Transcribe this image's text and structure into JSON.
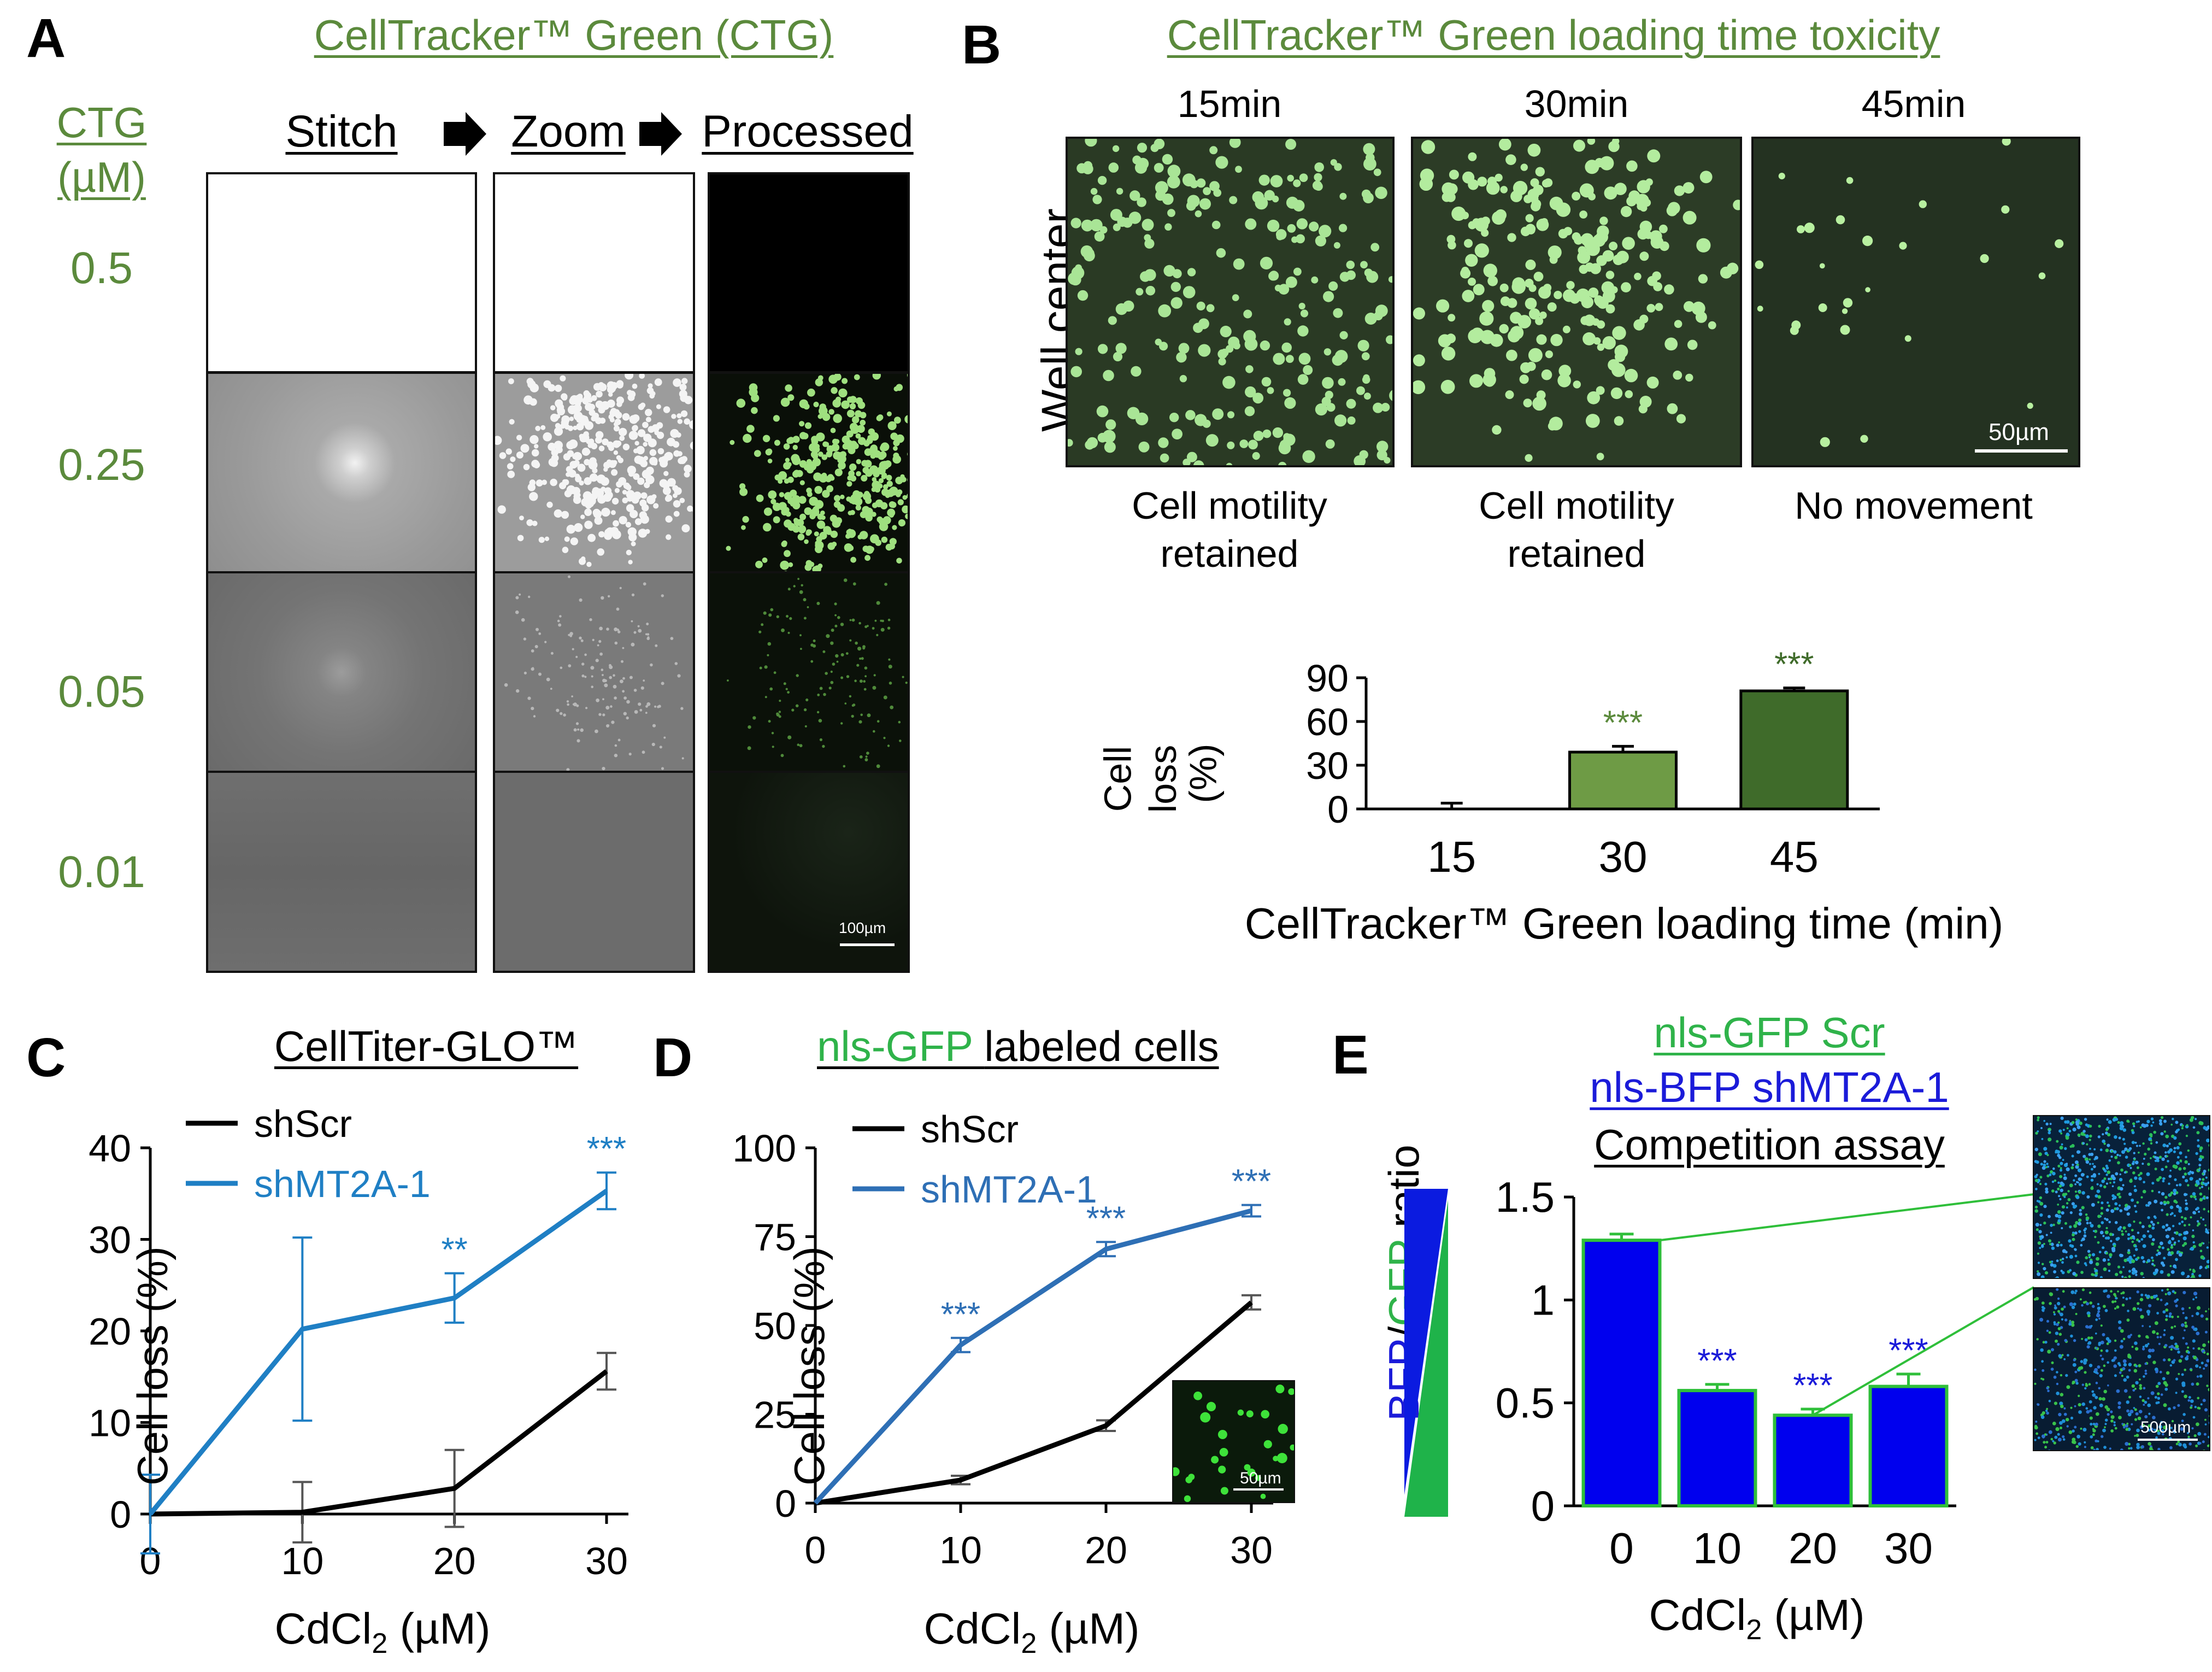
{
  "panel_a": {
    "label": "A",
    "title": "CellTracker™ Green (CTG)",
    "row_header": [
      "CTG",
      "(µM)"
    ],
    "col_stitch": "Stitch",
    "col_zoom": "Zoom",
    "col_processed": "Processed",
    "concentrations": [
      "0.5",
      "0.25",
      "0.05",
      "0.01"
    ],
    "scale_bar": "100µm"
  },
  "panel_b": {
    "label": "B",
    "title": "CellTracker™ Green loading time toxicity",
    "times": [
      "15min",
      "30min",
      "45min"
    ],
    "row_label": "Well center",
    "captions": [
      [
        "Cell motility",
        "retained"
      ],
      [
        "Cell motility",
        "retained"
      ],
      [
        "No movement",
        ""
      ]
    ],
    "scale_bar": "50µm"
  },
  "panel_c": {
    "label": "C",
    "title": "CellTiter-GLO™",
    "legend": [
      "shScr",
      "shMT2A-1"
    ],
    "inset_scale": ""
  },
  "panel_d": {
    "label": "D",
    "title_green": "nls-GFP ",
    "title_black": "labeled cells",
    "legend": [
      "shScr",
      "shMT2A-1"
    ],
    "inset_scale": "50µm"
  },
  "panel_e": {
    "label": "E",
    "title_lines": [
      "nls-GFP Scr",
      "nls-BFP shMT2A-1",
      "Competition assay"
    ],
    "ratio_label_blue": "BFP",
    "ratio_label_slash": "/",
    "ratio_label_green": "GFP",
    "ratio_label_tail": " ratio",
    "inset_scale": "500µm"
  },
  "chart_data": [
    {
      "id": "B-bar",
      "type": "bar",
      "title": "",
      "categories": [
        "15",
        "30",
        "45"
      ],
      "values": [
        0,
        39,
        81
      ],
      "errors": [
        4,
        4,
        2
      ],
      "significance": [
        "",
        "***",
        "***"
      ],
      "colors": [
        "#ffffff",
        "#6e9b45",
        "#3f6b2a"
      ],
      "sig_colors": [
        "#000000",
        "#5b8a3c",
        "#3f6b2a"
      ],
      "xlabel": "CellTracker™ Green loading time (min)",
      "ylabel": [
        "Cell",
        "loss",
        "(%)"
      ],
      "yticks": [
        "0",
        "30",
        "60",
        "90"
      ],
      "ylim": [
        0,
        90
      ]
    },
    {
      "id": "C-line",
      "type": "line",
      "title": "CellTiter-GLO™",
      "x": [
        0,
        10,
        20,
        30
      ],
      "xticks": [
        "0",
        "10",
        "20",
        "30"
      ],
      "yticks": [
        "0",
        "10",
        "20",
        "30",
        "40"
      ],
      "xlim": [
        0,
        30
      ],
      "ylim": [
        0,
        40
      ],
      "xlabel": "CdCl",
      "xlabel_sub": "2",
      "xlabel_unit": " (µM)",
      "ylabel": "Cell loss (%)",
      "series": [
        {
          "name": "shScr",
          "color": "#000000",
          "values": [
            0,
            0.2,
            2.8,
            15.6
          ],
          "errors": [
            0,
            3.3,
            4.2,
            2.0
          ],
          "significance": [
            "",
            "",
            "",
            ""
          ]
        },
        {
          "name": "shMT2A-1",
          "color": "#1f7fc4",
          "values": [
            0,
            20.2,
            23.6,
            35.3
          ],
          "errors": [
            4.3,
            10.0,
            2.7,
            2.0
          ],
          "significance": [
            "",
            "",
            "**",
            "***"
          ]
        }
      ]
    },
    {
      "id": "D-line",
      "type": "line",
      "title": "nls-GFP labeled cells",
      "x": [
        0,
        10,
        20,
        30
      ],
      "xticks": [
        "0",
        "10",
        "20",
        "30"
      ],
      "yticks": [
        "0",
        "25",
        "50",
        "75",
        "100"
      ],
      "xlim": [
        0,
        30
      ],
      "ylim": [
        0,
        100
      ],
      "xlabel": "CdCl",
      "xlabel_sub": "2",
      "xlabel_unit": " (µM)",
      "ylabel": "Cell loss (%)",
      "series": [
        {
          "name": "shScr",
          "color": "#000000",
          "values": [
            0,
            6.5,
            21.8,
            56.5
          ],
          "errors": [
            0,
            1.2,
            1.5,
            2.0
          ],
          "significance": [
            "",
            "",
            "",
            ""
          ]
        },
        {
          "name": "shMT2A-1",
          "color": "#2e6fb5",
          "values": [
            0,
            44.5,
            71.5,
            82.3
          ],
          "errors": [
            0,
            2.0,
            2.0,
            1.6
          ],
          "significance": [
            "",
            "***",
            "***",
            "***"
          ]
        }
      ]
    },
    {
      "id": "E-bar",
      "type": "bar",
      "title": "Competition assay",
      "categories": [
        "0",
        "10",
        "20",
        "30"
      ],
      "values": [
        1.29,
        0.56,
        0.44,
        0.58
      ],
      "errors": [
        0.03,
        0.03,
        0.03,
        0.06
      ],
      "significance": [
        "",
        "***",
        "***",
        "***"
      ],
      "bar_color": "#0000ee",
      "edge_color": "#2fbf3a",
      "xlabel": "CdCl",
      "xlabel_sub": "2",
      "xlabel_unit": " (µM)",
      "ylabel": "BFP/GFP ratio",
      "yticks": [
        "0",
        "0.5",
        "1",
        "1.5"
      ],
      "ylim": [
        0,
        1.5
      ]
    }
  ]
}
